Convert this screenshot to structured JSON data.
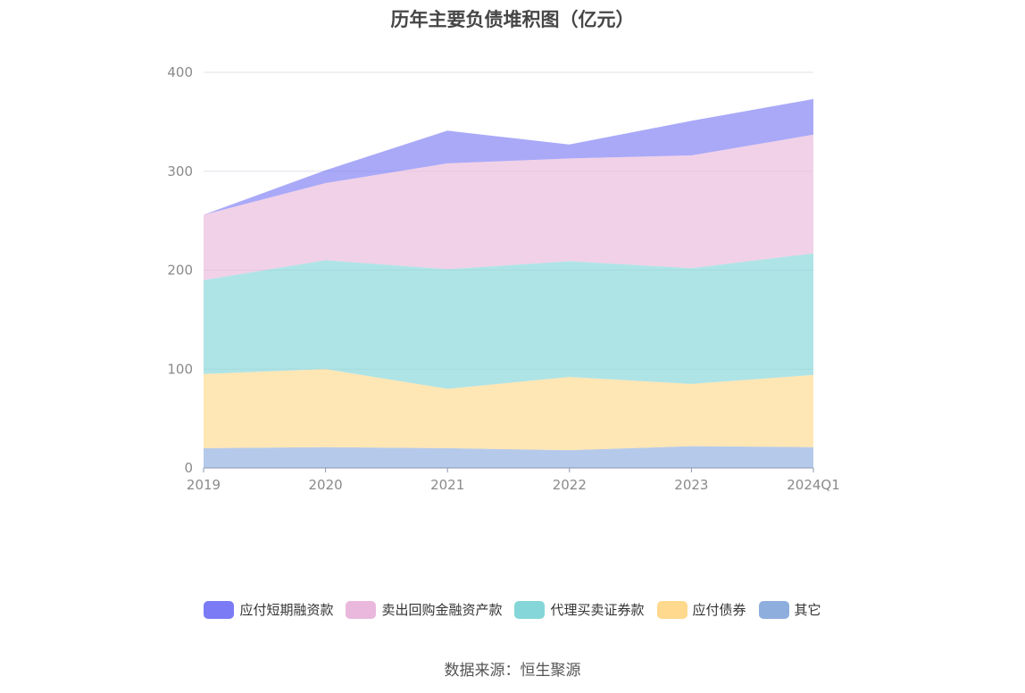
{
  "chart_data": {
    "type": "area",
    "stacked": true,
    "title": "历年主要负债堆积图（亿元）",
    "categories": [
      "2019",
      "2020",
      "2021",
      "2022",
      "2023",
      "2024Q1"
    ],
    "ylim": [
      0,
      400
    ],
    "yticks": [
      0,
      100,
      200,
      300,
      400
    ],
    "grid": true,
    "legend_position": "bottom",
    "series": [
      {
        "name": "其它",
        "color": "#8eaede",
        "values": [
          20,
          21,
          20,
          18,
          22,
          21
        ]
      },
      {
        "name": "应付债券",
        "color": "#ffd98e",
        "values": [
          75,
          79,
          60,
          74,
          63,
          73
        ]
      },
      {
        "name": "代理买卖证券款",
        "color": "#84d6d8",
        "values": [
          95,
          110,
          121,
          117,
          117,
          123
        ]
      },
      {
        "name": "卖出回购金融资产款",
        "color": "#eab8dc",
        "values": [
          66,
          78,
          107,
          104,
          114,
          120
        ]
      },
      {
        "name": "应付短期融资款",
        "color": "#7b7bf5",
        "values": [
          0,
          13,
          33,
          14,
          35,
          36
        ]
      }
    ]
  },
  "footer": {
    "source": "数据来源：恒生聚源"
  }
}
